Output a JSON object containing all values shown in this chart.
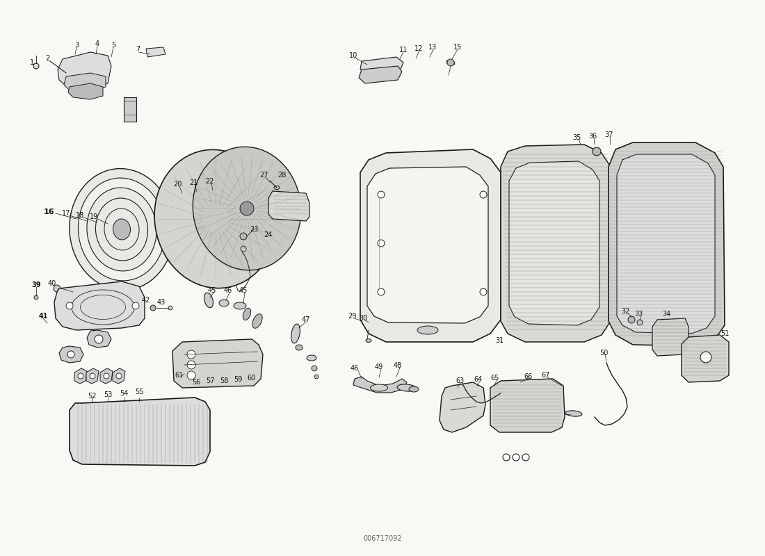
{
  "background_color": "#f5f5f0",
  "line_color": "#1a1a1a",
  "text_color": "#111111",
  "figsize": [
    11.0,
    8.0
  ],
  "dpi": 100,
  "part_number": "006717092"
}
